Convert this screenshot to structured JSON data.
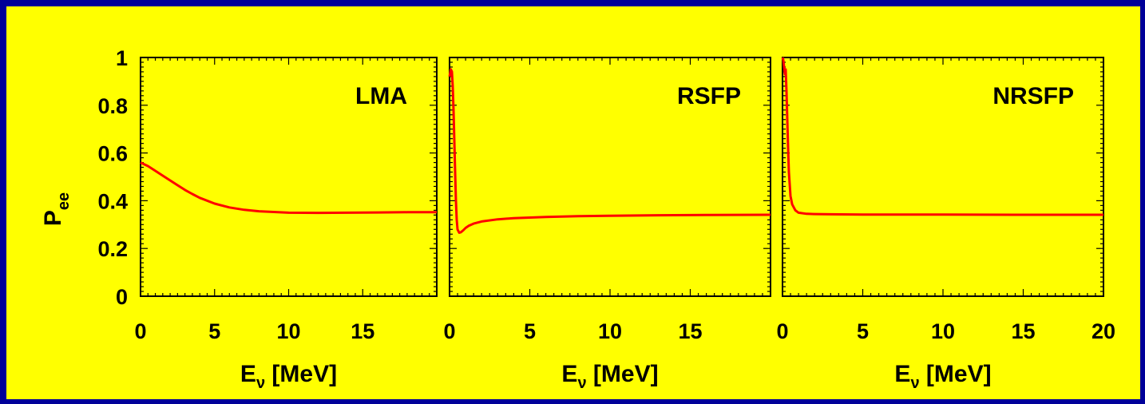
{
  "colors": {
    "background": "#ffff00",
    "border": "#000099",
    "curve": "#ff0000",
    "axes": "#000000"
  },
  "chart_data": [
    {
      "type": "line",
      "title": "",
      "panel_label": "LMA",
      "xlabel": {
        "main": "E",
        "sub": "ν",
        "rest": " [MeV]"
      },
      "ylabel": {
        "main": "P",
        "sub": "ee"
      },
      "xlim": [
        0,
        20
      ],
      "ylim": [
        0,
        1
      ],
      "x_ticks": [
        "0",
        "5",
        "10",
        "15"
      ],
      "y_ticks": [
        "0",
        "0.2",
        "0.4",
        "0.6",
        "0.8",
        "1"
      ],
      "series": [
        {
          "x": [
            0,
            0.5,
            1,
            1.5,
            2,
            2.5,
            3,
            3.5,
            4,
            5,
            6,
            7,
            8,
            10,
            12,
            14,
            16,
            18,
            20
          ],
          "y": [
            0.56,
            0.545,
            0.525,
            0.505,
            0.485,
            0.465,
            0.445,
            0.428,
            0.412,
            0.388,
            0.372,
            0.362,
            0.356,
            0.35,
            0.349,
            0.35,
            0.351,
            0.352,
            0.352
          ]
        }
      ]
    },
    {
      "type": "line",
      "title": "",
      "panel_label": "RSFP",
      "xlabel": {
        "main": "E",
        "sub": "ν",
        "rest": " [MeV]"
      },
      "xlim": [
        0,
        20
      ],
      "ylim": [
        0,
        1
      ],
      "x_ticks": [
        "0",
        "5",
        "10",
        "15"
      ],
      "series": [
        {
          "x": [
            0,
            0.08,
            0.15,
            0.2,
            0.25,
            0.3,
            0.35,
            0.4,
            0.45,
            0.5,
            0.6,
            0.7,
            0.85,
            1,
            1.2,
            1.5,
            2,
            3,
            4,
            6,
            8,
            10,
            13,
            16,
            20
          ],
          "y": [
            0.92,
            0.95,
            0.94,
            0.88,
            0.78,
            0.65,
            0.52,
            0.4,
            0.32,
            0.28,
            0.266,
            0.268,
            0.276,
            0.286,
            0.295,
            0.304,
            0.313,
            0.322,
            0.327,
            0.332,
            0.335,
            0.337,
            0.339,
            0.34,
            0.341
          ]
        }
      ]
    },
    {
      "type": "line",
      "title": "",
      "panel_label": "NRSFP",
      "xlabel": {
        "main": "E",
        "sub": "ν",
        "rest": " [MeV]"
      },
      "xlim": [
        0,
        20
      ],
      "ylim": [
        0,
        1
      ],
      "x_ticks": [
        "0",
        "5",
        "10",
        "15",
        "20"
      ],
      "series": [
        {
          "x": [
            0,
            0.05,
            0.1,
            0.15,
            0.2,
            0.25,
            0.3,
            0.35,
            0.4,
            0.5,
            0.6,
            0.8,
            1,
            1.5,
            2,
            3,
            5,
            10,
            15,
            20
          ],
          "y": [
            1.0,
            0.99,
            0.96,
            0.93,
            0.95,
            0.86,
            0.74,
            0.62,
            0.52,
            0.42,
            0.385,
            0.36,
            0.35,
            0.345,
            0.344,
            0.343,
            0.342,
            0.342,
            0.341,
            0.341
          ]
        }
      ]
    }
  ]
}
